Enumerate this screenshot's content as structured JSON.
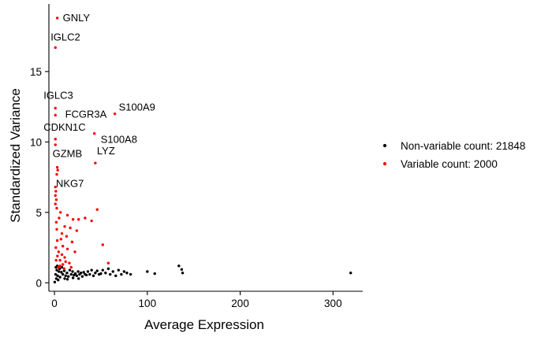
{
  "chart_data": {
    "type": "scatter",
    "title": "",
    "xlabel": "Average Expression",
    "ylabel": "Standardized Variance",
    "xlim": [
      -6,
      332
    ],
    "ylim": [
      -0.6,
      19.8
    ],
    "xticks": [
      0,
      100,
      200,
      300
    ],
    "yticks": [
      0,
      5,
      10,
      15
    ],
    "grid": false,
    "legend_position": "right",
    "colors": {
      "non_variable": "#000000",
      "variable": "#ff0000"
    },
    "series": [
      {
        "name": "Non-variable count: 21848",
        "color": "#000000",
        "points": [
          [
            0.3,
            0.05
          ],
          [
            1.2,
            0.6
          ],
          [
            2.5,
            0.9
          ],
          [
            3.4,
            0.5
          ],
          [
            4.8,
            0.8
          ],
          [
            6.0,
            0.4
          ],
          [
            7.5,
            0.75
          ],
          [
            9.0,
            0.6
          ],
          [
            10.5,
            0.85
          ],
          [
            12.0,
            0.5
          ],
          [
            13.5,
            0.7
          ],
          [
            15.0,
            0.45
          ],
          [
            16.5,
            0.9
          ],
          [
            18.0,
            0.6
          ],
          [
            19.5,
            0.8
          ],
          [
            21.0,
            0.55
          ],
          [
            22.5,
            0.65
          ],
          [
            24.0,
            0.5
          ],
          [
            25.5,
            0.8
          ],
          [
            27.0,
            0.6
          ],
          [
            28.5,
            0.7
          ],
          [
            30.0,
            0.45
          ],
          [
            31.5,
            0.75
          ],
          [
            33.0,
            0.6
          ],
          [
            34.5,
            0.55
          ],
          [
            36.0,
            0.8
          ],
          [
            38.0,
            0.6
          ],
          [
            40.0,
            0.9
          ],
          [
            42.0,
            0.5
          ],
          [
            44.0,
            0.7
          ],
          [
            46.0,
            0.85
          ],
          [
            48.0,
            0.6
          ],
          [
            50.0,
            0.65
          ],
          [
            52.0,
            0.9
          ],
          [
            55.0,
            0.7
          ],
          [
            58.0,
            1.0
          ],
          [
            60.0,
            0.6
          ],
          [
            63.0,
            0.8
          ],
          [
            66.0,
            0.5
          ],
          [
            69.0,
            0.9
          ],
          [
            72.0,
            0.6
          ],
          [
            75.0,
            0.8
          ],
          [
            78.0,
            0.7
          ],
          [
            82.0,
            0.6
          ],
          [
            100.0,
            0.8
          ],
          [
            108.0,
            0.65
          ],
          [
            134.0,
            1.2
          ],
          [
            137.0,
            0.95
          ],
          [
            138.0,
            0.7
          ],
          [
            319.0,
            0.7
          ],
          [
            1.5,
            1.1
          ],
          [
            3.0,
            1.2
          ],
          [
            5.5,
            1.0
          ],
          [
            8.0,
            1.1
          ],
          [
            2.0,
            0.3
          ],
          [
            4.0,
            0.2
          ],
          [
            11.0,
            0.3
          ],
          [
            14.0,
            0.25
          ],
          [
            20.0,
            0.35
          ],
          [
            26.0,
            0.3
          ]
        ]
      },
      {
        "name": "Variable count: 2000",
        "color": "#ff0000",
        "points": [
          [
            3.0,
            18.8
          ],
          [
            1.0,
            16.7
          ],
          [
            1.0,
            12.4
          ],
          [
            1.0,
            11.9
          ],
          [
            65.0,
            12.0
          ],
          [
            43.0,
            10.6
          ],
          [
            1.0,
            10.2
          ],
          [
            1.0,
            9.8
          ],
          [
            44.0,
            8.5
          ],
          [
            3.0,
            8.2
          ],
          [
            3.5,
            8.0
          ],
          [
            2.5,
            7.7
          ],
          [
            1.0,
            6.8
          ],
          [
            1.5,
            6.5
          ],
          [
            1.0,
            6.2
          ],
          [
            2.0,
            5.9
          ],
          [
            1.0,
            5.6
          ],
          [
            2.5,
            5.3
          ],
          [
            6.5,
            5.0
          ],
          [
            14.0,
            4.8
          ],
          [
            20.0,
            4.5
          ],
          [
            26.0,
            4.5
          ],
          [
            33.0,
            4.6
          ],
          [
            46.0,
            5.2
          ],
          [
            40.0,
            4.4
          ],
          [
            11.0,
            4.0
          ],
          [
            17.0,
            3.9
          ],
          [
            24.0,
            3.7
          ],
          [
            8.0,
            3.5
          ],
          [
            13.0,
            3.3
          ],
          [
            19.0,
            2.9
          ],
          [
            9.0,
            2.6
          ],
          [
            14.0,
            2.4
          ],
          [
            22.0,
            2.2
          ],
          [
            52.0,
            2.7
          ],
          [
            8.0,
            2.0
          ],
          [
            11.0,
            1.8
          ],
          [
            6.0,
            1.6
          ],
          [
            16.0,
            1.4
          ],
          [
            9.0,
            1.3
          ],
          [
            58.0,
            1.4
          ],
          [
            4.0,
            1.1
          ],
          [
            6.0,
            1.2
          ],
          [
            10.5,
            1.0
          ],
          [
            2.0,
            4.3
          ],
          [
            2.5,
            3.8
          ],
          [
            3.0,
            3.0
          ],
          [
            1.5,
            2.5
          ],
          [
            4.5,
            2.2
          ],
          [
            5.0,
            4.6
          ],
          [
            7.0,
            3.1
          ],
          [
            1.8,
            1.6
          ],
          [
            3.2,
            1.9
          ],
          [
            12.0,
            1.5
          ],
          [
            18.0,
            1.1
          ]
        ]
      }
    ],
    "annotations": [
      {
        "label": "GNLY",
        "x": 3.0,
        "y": 18.8
      },
      {
        "label": "IGLC2",
        "x": 1.0,
        "y": 16.7
      },
      {
        "label": "IGLC3",
        "x": 1.0,
        "y": 12.4
      },
      {
        "label": "FCGR3A",
        "x": 65.0,
        "y": 12.0
      },
      {
        "label": "S100A9",
        "x": 65.0,
        "y": 12.0
      },
      {
        "label": "CDKN1C",
        "x": 1.0,
        "y": 10.2
      },
      {
        "label": "S100A8",
        "x": 43.0,
        "y": 10.6
      },
      {
        "label": "GZMB",
        "x": 3.0,
        "y": 8.2
      },
      {
        "label": "LYZ",
        "x": 44.0,
        "y": 8.5
      },
      {
        "label": "NKG7",
        "x": 2.5,
        "y": 7.7
      }
    ]
  }
}
